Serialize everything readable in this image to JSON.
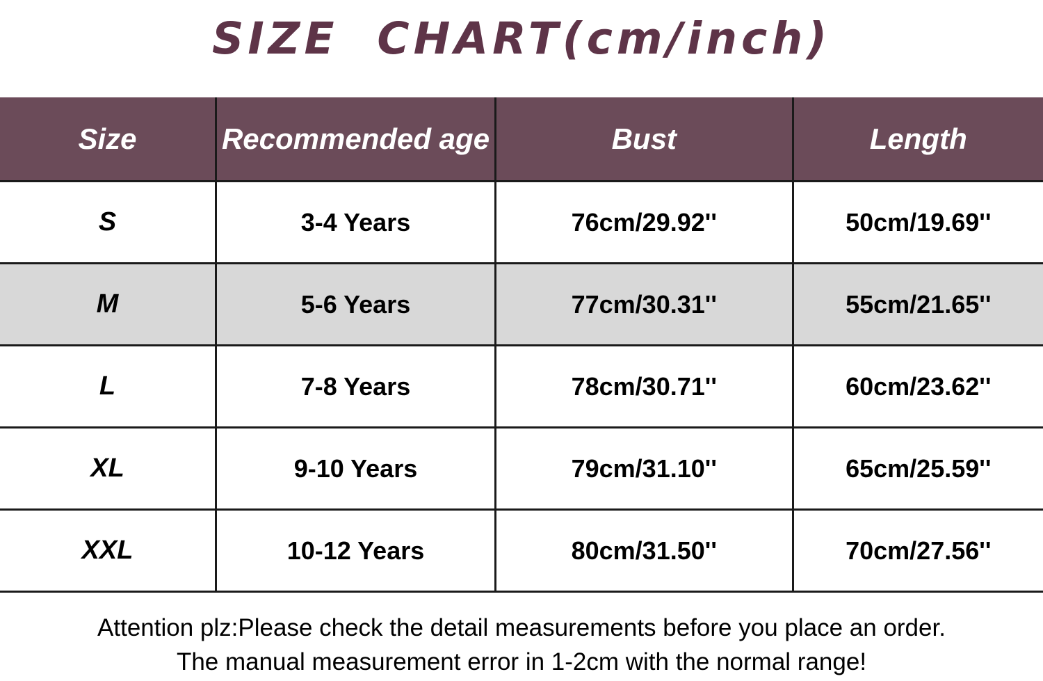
{
  "title": "SIZE CHART(cm/inch)",
  "table": {
    "columns": [
      "Size",
      "Recommended age",
      "Bust",
      "Length"
    ],
    "rows": [
      {
        "size": "S",
        "age": "3-4 Years",
        "bust": "76cm/29.92''",
        "length": "50cm/19.69''"
      },
      {
        "size": "M",
        "age": "5-6 Years",
        "bust": "77cm/30.31''",
        "length": "55cm/21.65''"
      },
      {
        "size": "L",
        "age": "7-8 Years",
        "bust": "78cm/30.71''",
        "length": "60cm/23.62''"
      },
      {
        "size": "XL",
        "age": "9-10 Years",
        "bust": "79cm/31.10''",
        "length": "65cm/25.59''"
      },
      {
        "size": "XXL",
        "age": "10-12 Years",
        "bust": "80cm/31.50''",
        "length": "70cm/27.56''"
      }
    ],
    "highlighted_row": "M"
  },
  "footer": {
    "line1": "Attention plz:Please check the detail measurements before you place an order.",
    "line2": "The manual measurement error in 1-2cm with the normal range!"
  },
  "colors": {
    "title_text": "#5e3448",
    "header_bg": "#6b4b59",
    "header_text": "#ffffff",
    "highlight_row_bg": "#d8d8d8",
    "border": "#1a1a1a",
    "body_text": "#000000",
    "page_bg": "#ffffff"
  }
}
